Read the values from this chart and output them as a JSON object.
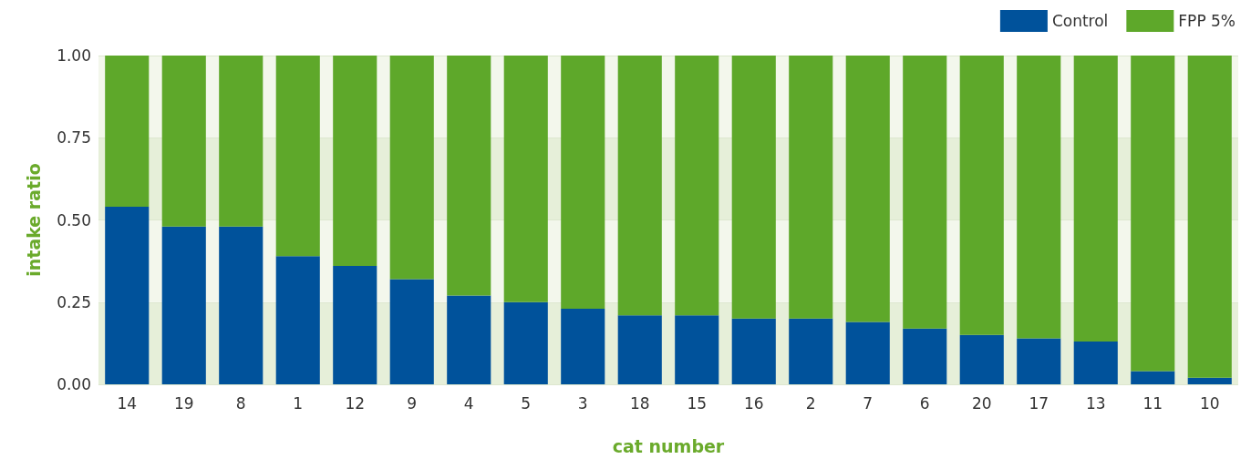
{
  "chart_data": {
    "type": "bar",
    "stacked": true,
    "xlabel": "cat number",
    "ylabel": "intake ratio",
    "categories": [
      "14",
      "19",
      "8",
      "1",
      "12",
      "9",
      "4",
      "5",
      "3",
      "18",
      "15",
      "16",
      "2",
      "7",
      "6",
      "20",
      "17",
      "13",
      "11",
      "10"
    ],
    "series": [
      {
        "name": "Control",
        "color": "#00529b",
        "values": [
          0.54,
          0.48,
          0.48,
          0.39,
          0.36,
          0.32,
          0.27,
          0.25,
          0.23,
          0.21,
          0.21,
          0.2,
          0.2,
          0.19,
          0.17,
          0.15,
          0.14,
          0.13,
          0.04,
          0.02
        ]
      },
      {
        "name": "FPP 5%",
        "color": "#5ea82a",
        "values": [
          0.46,
          0.52,
          0.52,
          0.61,
          0.64,
          0.68,
          0.73,
          0.75,
          0.77,
          0.79,
          0.79,
          0.8,
          0.8,
          0.81,
          0.83,
          0.85,
          0.86,
          0.87,
          0.96,
          0.98
        ]
      }
    ],
    "ylim": [
      0,
      1
    ],
    "yticks": [
      {
        "value": 0,
        "label": "0.00"
      },
      {
        "value": 0.25,
        "label": "0.25"
      },
      {
        "value": 0.5,
        "label": "0.50"
      },
      {
        "value": 0.75,
        "label": "0.75"
      },
      {
        "value": 1,
        "label": "1.00"
      }
    ],
    "grid": "y",
    "legend": "top right"
  }
}
